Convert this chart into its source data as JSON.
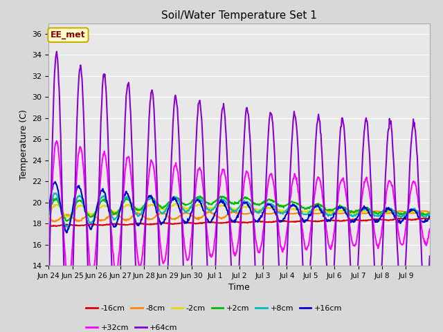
{
  "title": "Soil/Water Temperature Set 1",
  "xlabel": "Time",
  "ylabel": "Temperature (C)",
  "ylim": [
    14,
    37
  ],
  "yticks": [
    14,
    16,
    18,
    20,
    22,
    24,
    26,
    28,
    30,
    32,
    34,
    36
  ],
  "annotation_text": "EE_met",
  "annotation_bg": "#ffffcc",
  "annotation_border": "#ccaa00",
  "annotation_text_color": "#8b0000",
  "fig_bg": "#d8d8d8",
  "plot_bg": "#e8e8e8",
  "series": [
    {
      "label": "-16cm",
      "color": "#dd0000",
      "lw": 1.5
    },
    {
      "label": "-8cm",
      "color": "#ff8800",
      "lw": 1.5
    },
    {
      "label": "-2cm",
      "color": "#dddd00",
      "lw": 1.5
    },
    {
      "label": "+2cm",
      "color": "#00bb00",
      "lw": 1.5
    },
    {
      "label": "+8cm",
      "color": "#00bbbb",
      "lw": 1.5
    },
    {
      "label": "+16cm",
      "color": "#0000cc",
      "lw": 1.5
    },
    {
      "label": "+32cm",
      "color": "#ff00ff",
      "lw": 1.5
    },
    {
      "label": "+64cm",
      "color": "#8800cc",
      "lw": 1.5
    }
  ],
  "xtick_labels": [
    "Jun 24",
    "Jun 25",
    "Jun 26",
    "Jun 27",
    "Jun 28",
    "Jun 29",
    "Jun 30",
    "Jul 1",
    "Jul 2",
    "Jul 3",
    "Jul 4",
    "Jul 5",
    "Jul 6",
    "Jul 7",
    "Jul 8",
    "Jul 9"
  ],
  "num_days": 16,
  "pts_per_day": 48,
  "legend_ncol_row1": 6,
  "legend_ncol_row2": 2
}
